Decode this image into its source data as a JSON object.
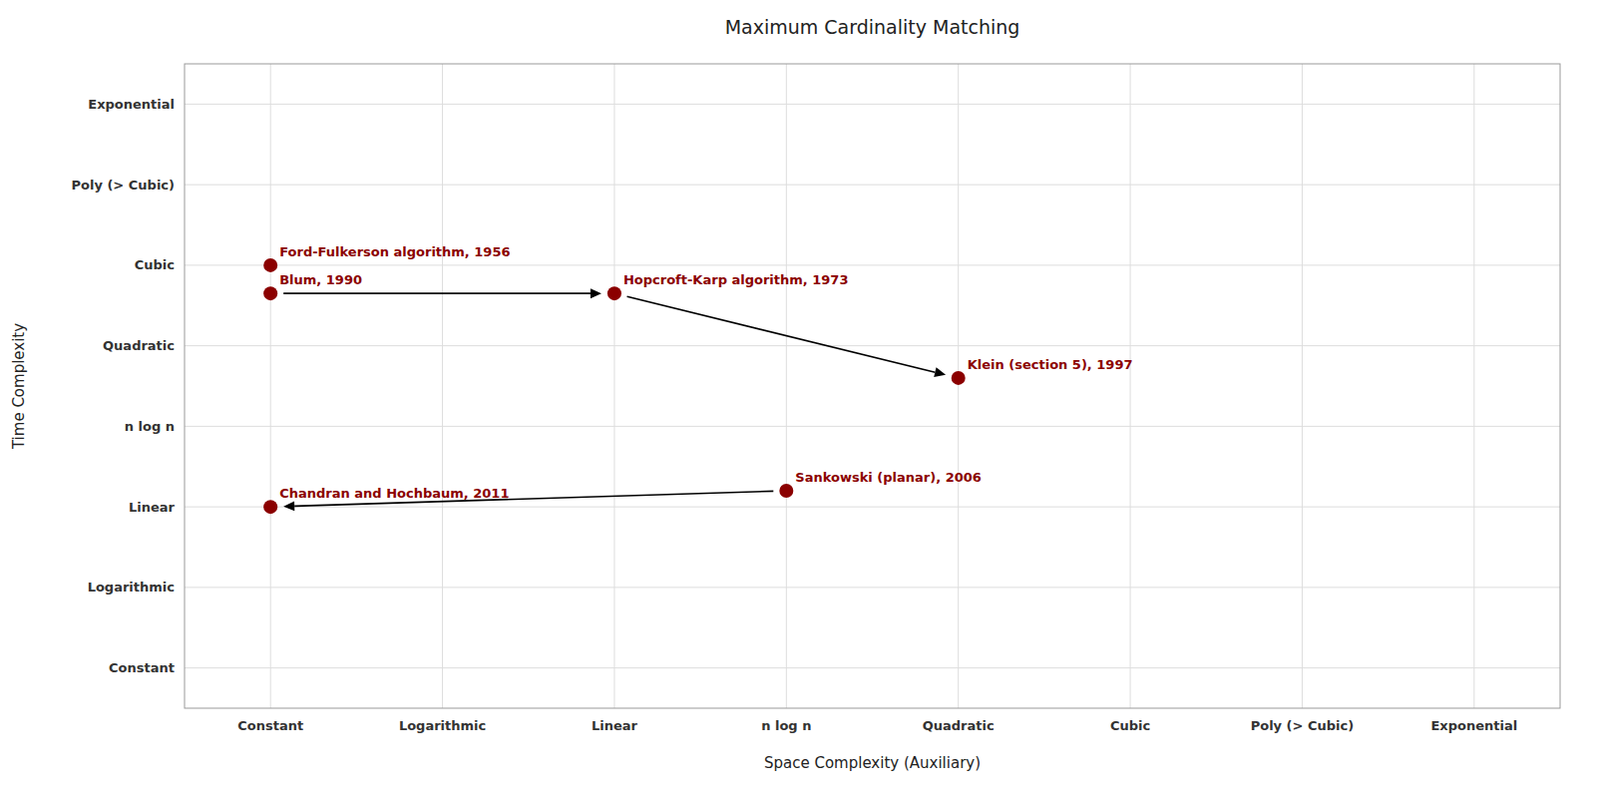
{
  "chart_data": {
    "type": "scatter",
    "title": "Maximum Cardinality Matching",
    "x_label": "Space Complexity (Auxiliary)",
    "y_label": "Time Complexity",
    "xlim": [
      -0.5,
      7.5
    ],
    "ylim": [
      -0.5,
      7.5
    ],
    "xticks": [
      {
        "value": 0,
        "label": "Constant"
      },
      {
        "value": 1,
        "label": "Logarithmic"
      },
      {
        "value": 2,
        "label": "Linear"
      },
      {
        "value": 3,
        "label": "n log n"
      },
      {
        "value": 4,
        "label": "Quadratic"
      },
      {
        "value": 5,
        "label": "Cubic"
      },
      {
        "value": 6,
        "label": "Poly (> Cubic)"
      },
      {
        "value": 7,
        "label": "Exponential"
      }
    ],
    "yticks": [
      {
        "value": 0,
        "label": "Constant"
      },
      {
        "value": 1,
        "label": "Logarithmic"
      },
      {
        "value": 2,
        "label": "Linear"
      },
      {
        "value": 3,
        "label": "n log n"
      },
      {
        "value": 4,
        "label": "Quadratic"
      },
      {
        "value": 5,
        "label": "Cubic"
      },
      {
        "value": 6,
        "label": "Poly (> Cubic)"
      },
      {
        "value": 7,
        "label": "Exponential"
      }
    ],
    "grid": true,
    "color": "#8b0000",
    "marker": "circle",
    "labels": [
      "Ford-Fulkerson algorithm, 1956",
      "Blum, 1990",
      "Hopcroft-Karp algorithm, 1973",
      "Klein (section 5), 1997",
      "Sankowski (planar), 2006",
      "Chandran and Hochbaum, 2011"
    ],
    "x": [
      0,
      0,
      2,
      4,
      3,
      0
    ],
    "values": [
      5,
      4.65,
      4.65,
      3.6,
      2.2,
      2.0
    ],
    "arrows": [
      {
        "from": "Blum, 1990",
        "to": "Hopcroft-Karp algorithm, 1973",
        "color": "#000000"
      },
      {
        "from": "Hopcroft-Karp algorithm, 1973",
        "to": "Klein (section 5), 1997",
        "color": "#000000"
      },
      {
        "from": "Sankowski (planar), 2006",
        "to": "Chandran and Hochbaum, 2011",
        "color": "#000000"
      }
    ]
  }
}
